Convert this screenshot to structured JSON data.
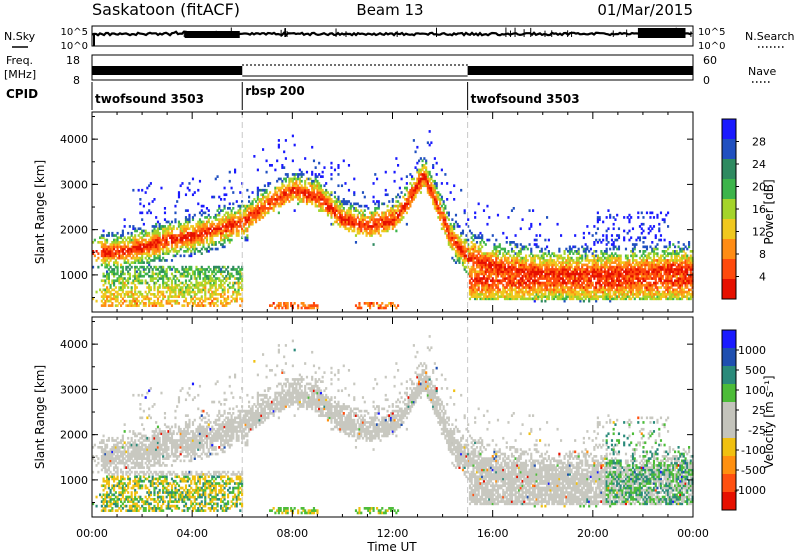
{
  "header": {
    "title_left": "Saskatoon (fitACF)",
    "title_center": "Beam 13",
    "title_right": "01/Mar/2015"
  },
  "strip_labels": {
    "nsky": "N.Sky",
    "nsky_ticks": [
      "10^5",
      "10^0"
    ],
    "nsearch": "N.Search",
    "nsearch_ticks": [
      "10^5",
      "10^0"
    ],
    "freq": "Freq.",
    "freq_unit": "[MHz]",
    "freq_ticks": [
      "18",
      "8"
    ],
    "nave": "Nave",
    "nave_ticks": [
      "60",
      "0"
    ],
    "cpid": "CPID"
  },
  "cpid_segments": [
    {
      "label": "twofsound 3503",
      "start_hour": 0,
      "end_hour": 6
    },
    {
      "label": "rbsp 200",
      "start_hour": 6,
      "end_hour": 15
    },
    {
      "label": "twofsound 3503",
      "start_hour": 15,
      "end_hour": 24
    }
  ],
  "colors": {
    "power": [
      "#1a1aff",
      "#2050c0",
      "#2e8a60",
      "#3cb44a",
      "#a4d42a",
      "#f0c81e",
      "#ff8c14",
      "#ff4a0c",
      "#e61000"
    ],
    "velocity": [
      "#1a1aff",
      "#1f4fb0",
      "#2a8a7a",
      "#4cbc38",
      "#c4c4bc",
      "#c4c4bc",
      "#f0c010",
      "#ff9010",
      "#ff5010",
      "#e61000"
    ],
    "grey": "#c8c8c0"
  },
  "chart_data": [
    {
      "type": "heatmap",
      "name": "power-panel",
      "x_range_hours": [
        0,
        24
      ],
      "xticks": [
        "00:00",
        "04:00",
        "08:00",
        "12:00",
        "16:00",
        "20:00",
        "00:00"
      ],
      "ylabel": "Slant Range [km]",
      "ylim": [
        180,
        4600
      ],
      "yticks": [
        "1000",
        "2000",
        "3000",
        "4000"
      ],
      "colorbar_label": "Power [dB]",
      "colorbar_ticks": [
        "28",
        "24",
        "20",
        "16",
        "12",
        "8",
        "4"
      ]
    },
    {
      "type": "heatmap",
      "name": "velocity-panel",
      "x_range_hours": [
        0,
        24
      ],
      "xticks": [
        "00:00",
        "04:00",
        "08:00",
        "12:00",
        "16:00",
        "20:00",
        "00:00"
      ],
      "xlabel": "Time UT",
      "ylabel": "Slant Range [km]",
      "ylim": [
        180,
        4600
      ],
      "yticks": [
        "1000",
        "2000",
        "3000",
        "4000"
      ],
      "colorbar_label": "Velocity [m s⁻¹]",
      "colorbar_ticks": [
        "1000",
        "500",
        "100",
        "25",
        "-25",
        "-100",
        "-500",
        "-1000"
      ]
    }
  ]
}
